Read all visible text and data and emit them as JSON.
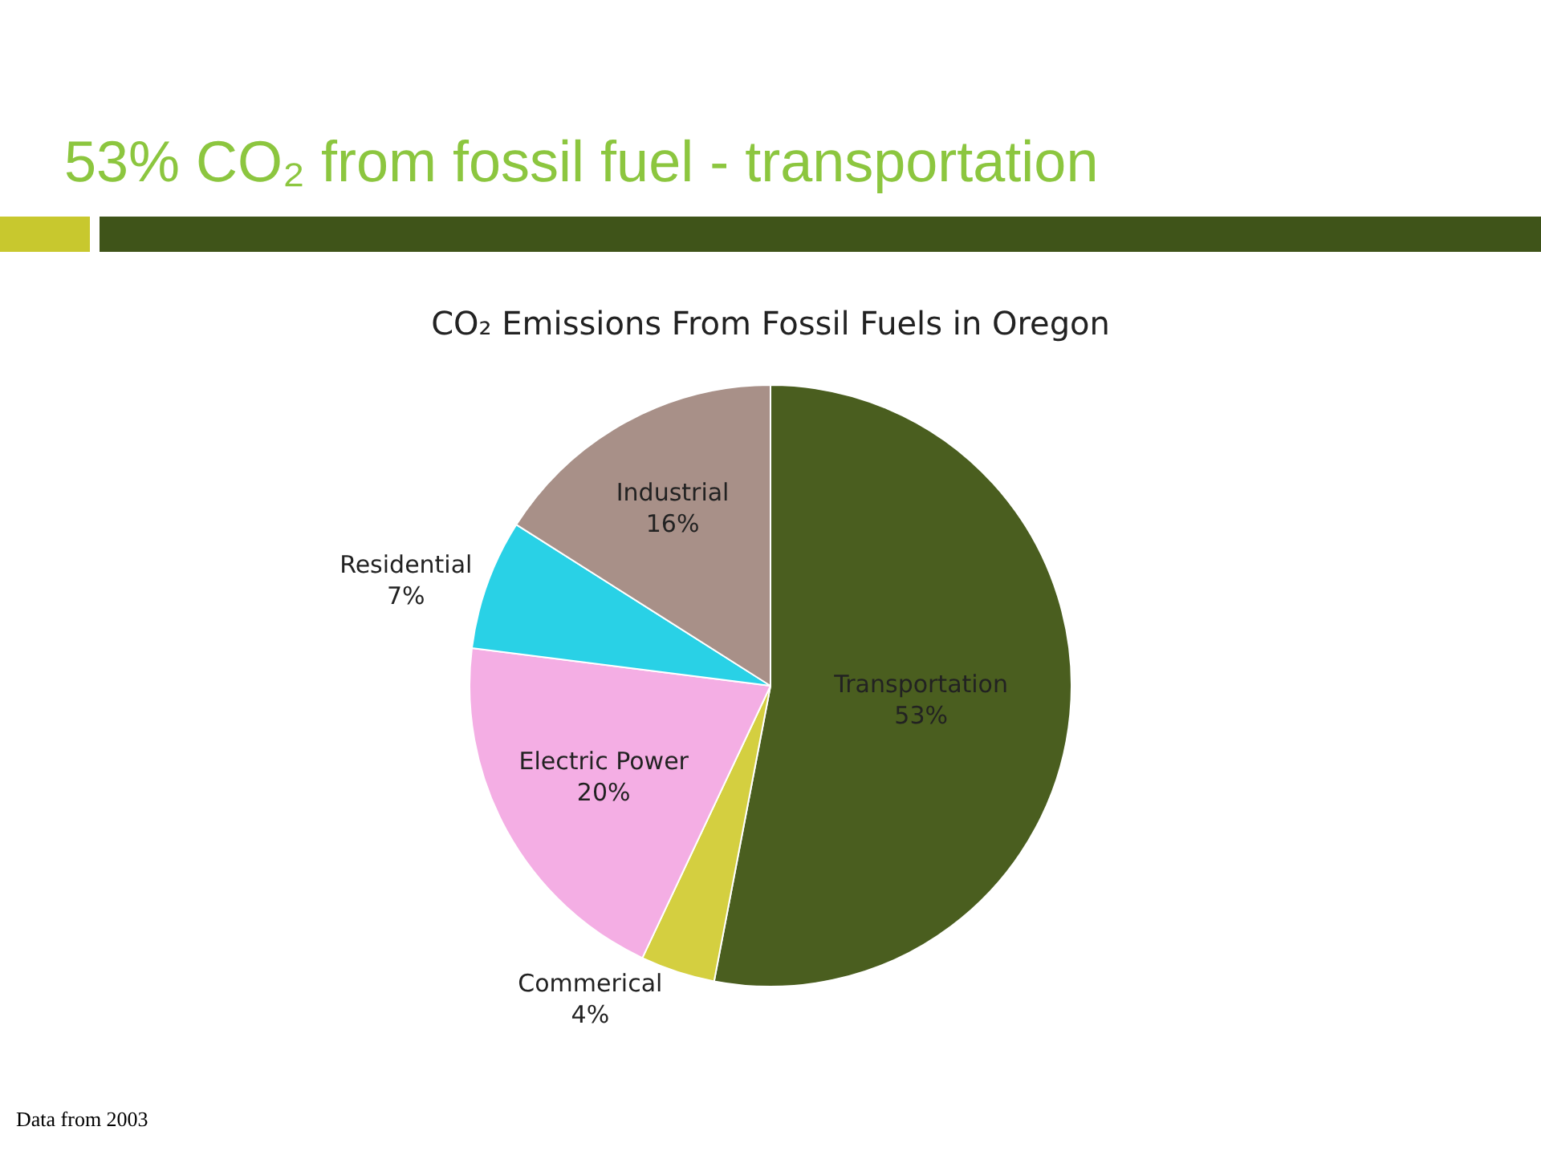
{
  "chart_data": {
    "type": "pie",
    "title": "53% CO₂ from fossil fuel - transportation",
    "subtitle": "CO₂ Emissions From Fossil Fuels in Oregon",
    "categories": [
      "Transportation",
      "Commerical",
      "Electric Power",
      "Residential",
      "Industrial"
    ],
    "values": [
      53,
      4,
      20,
      7,
      16
    ],
    "colors": [
      "#4a5e1f",
      "#d4cf40",
      "#f4aee4",
      "#29d1e6",
      "#a89088"
    ],
    "value_labels": [
      "53%",
      "4%",
      "20%",
      "7%",
      "16%"
    ],
    "legend": false,
    "annotations": [
      "Data from 2003"
    ]
  }
}
